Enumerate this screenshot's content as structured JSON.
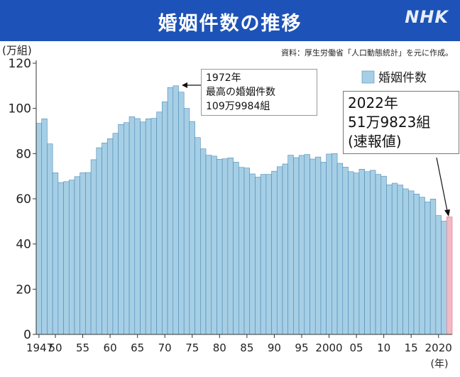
{
  "header": {
    "title": "婚姻件数の推移",
    "brand": "NHK"
  },
  "unit_label": "(万組)",
  "source": "資料：厚生労働省「人口動態統計」を元に作成。",
  "annotations": {
    "peak": {
      "line1": "1972年",
      "line2": "最高の婚姻件数",
      "line3": "109万9984組"
    },
    "latest": {
      "line1": "2022年",
      "line2": "51万9823組",
      "line3": "(速報値)"
    }
  },
  "colors": {
    "bar": "#a6cfe6",
    "bar_outline": "#4d89b3",
    "highlight": "#f4b8c4",
    "header": "#1d53b8"
  },
  "chart_data": {
    "type": "bar",
    "legend": "婚姻件数",
    "legend_position": "top-right",
    "ylim": [
      0,
      120
    ],
    "yticks": [
      0,
      20,
      40,
      60,
      80,
      100,
      120
    ],
    "xtick_labels": [
      {
        "year": 1947,
        "label": "1947"
      },
      {
        "year": 1950,
        "label": "50"
      },
      {
        "year": 1955,
        "label": "55"
      },
      {
        "year": 1960,
        "label": "60"
      },
      {
        "year": 1965,
        "label": "65"
      },
      {
        "year": 1970,
        "label": "70"
      },
      {
        "year": 1975,
        "label": "75"
      },
      {
        "year": 1980,
        "label": "80"
      },
      {
        "year": 1985,
        "label": "85"
      },
      {
        "year": 1990,
        "label": "90"
      },
      {
        "year": 1995,
        "label": "95"
      },
      {
        "year": 2000,
        "label": "2000"
      },
      {
        "year": 2005,
        "label": "05"
      },
      {
        "year": 2010,
        "label": "10"
      },
      {
        "year": 2015,
        "label": "15"
      },
      {
        "year": 2020,
        "label": "2020"
      }
    ],
    "x_unit": "(年)",
    "years": [
      1947,
      1948,
      1949,
      1950,
      1951,
      1952,
      1953,
      1954,
      1955,
      1956,
      1957,
      1958,
      1959,
      1960,
      1961,
      1962,
      1963,
      1964,
      1965,
      1966,
      1967,
      1968,
      1969,
      1970,
      1971,
      1972,
      1973,
      1974,
      1975,
      1976,
      1977,
      1978,
      1979,
      1980,
      1981,
      1982,
      1983,
      1984,
      1985,
      1986,
      1987,
      1988,
      1989,
      1990,
      1991,
      1992,
      1993,
      1994,
      1995,
      1996,
      1997,
      1998,
      1999,
      2000,
      2001,
      2002,
      2003,
      2004,
      2005,
      2006,
      2007,
      2008,
      2009,
      2010,
      2011,
      2012,
      2013,
      2014,
      2015,
      2016,
      2017,
      2018,
      2019,
      2020,
      2021,
      2022
    ],
    "values": [
      93.4,
      95.4,
      84.3,
      71.5,
      67.2,
      67.6,
      68.3,
      69.8,
      71.5,
      71.6,
      77.3,
      82.6,
      84.7,
      86.6,
      89.0,
      92.9,
      93.7,
      96.3,
      95.5,
      94.0,
      95.4,
      95.6,
      98.4,
      102.9,
      109.2,
      110.0,
      107.2,
      100.0,
      94.2,
      87.1,
      82.1,
      79.3,
      78.9,
      77.5,
      77.7,
      78.1,
      76.2,
      73.9,
      73.6,
      71.0,
      69.6,
      70.8,
      70.8,
      72.2,
      74.2,
      75.4,
      79.3,
      78.2,
      79.2,
      79.6,
      77.6,
      78.5,
      76.2,
      79.8,
      80.0,
      75.7,
      74.0,
      72.0,
      71.4,
      73.1,
      72.0,
      72.6,
      70.8,
      70.0,
      66.2,
      66.9,
      66.1,
      64.4,
      63.5,
      62.1,
      60.7,
      58.6,
      59.9,
      52.6,
      50.1,
      52.0
    ],
    "highlight_year": 2022
  }
}
